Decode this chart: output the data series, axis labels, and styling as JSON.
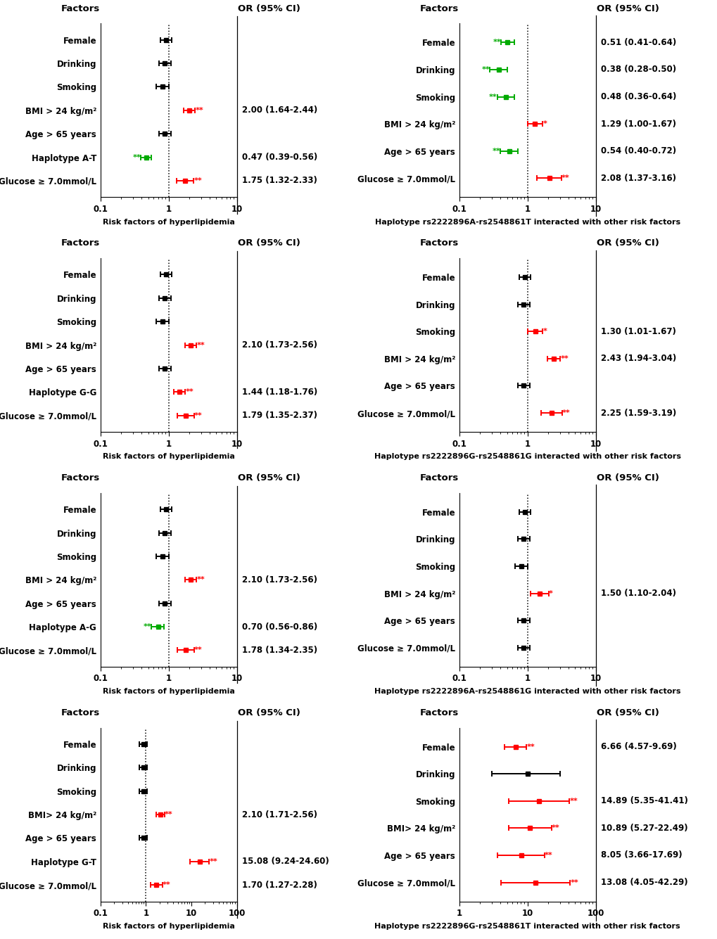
{
  "panels": [
    {
      "row": 0,
      "col": 0,
      "xlabel": "Risk factors of hyperlipidemia",
      "xlim": [
        0.1,
        10
      ],
      "xtick_vals": [
        0.1,
        1,
        10
      ],
      "xtick_labels": [
        "0.1",
        "1",
        "10"
      ],
      "factors": [
        "Female",
        "Drinking",
        "Smoking",
        "BMI > 24 kg/m²",
        "Age > 65 years",
        "Haplotype A-T",
        "Glucose ≥ 7.0mmol/L"
      ],
      "or": [
        0.92,
        0.88,
        0.82,
        2.0,
        0.88,
        0.47,
        1.75
      ],
      "ci_low": [
        0.75,
        0.72,
        0.66,
        1.64,
        0.72,
        0.39,
        1.32
      ],
      "ci_high": [
        1.12,
        1.07,
        1.01,
        2.44,
        1.07,
        0.56,
        2.33
      ],
      "colors": [
        "#000000",
        "#000000",
        "#000000",
        "#ff0000",
        "#000000",
        "#00aa00",
        "#ff0000"
      ],
      "sig_left": [
        "",
        "",
        "",
        "",
        "",
        "**",
        ""
      ],
      "sig_right": [
        "",
        "",
        "",
        "**",
        "",
        "",
        "**"
      ],
      "or_labels": [
        "",
        "",
        "",
        "2.00 (1.64-2.44)",
        "",
        "0.47 (0.39-0.56)",
        "1.75 (1.32-2.33)"
      ]
    },
    {
      "row": 0,
      "col": 1,
      "xlabel": "Haplotype rs2222896A-rs2548861T interacted with other risk factors",
      "xlim": [
        0.1,
        10
      ],
      "xtick_vals": [
        0.1,
        1,
        10
      ],
      "xtick_labels": [
        "0.1",
        "1",
        "10"
      ],
      "factors": [
        "Female",
        "Drinking",
        "Smoking",
        "BMI > 24 kg/m²",
        "Age > 65 years",
        "Glucose ≥ 7.0mmol/L"
      ],
      "or": [
        0.51,
        0.38,
        0.48,
        1.29,
        0.54,
        2.08
      ],
      "ci_low": [
        0.41,
        0.28,
        0.36,
        1.0,
        0.4,
        1.37
      ],
      "ci_high": [
        0.64,
        0.5,
        0.64,
        1.67,
        0.72,
        3.16
      ],
      "colors": [
        "#00aa00",
        "#00aa00",
        "#00aa00",
        "#ff0000",
        "#00aa00",
        "#ff0000"
      ],
      "sig_left": [
        "**",
        "**",
        "**",
        "",
        "**",
        ""
      ],
      "sig_right": [
        "",
        "",
        "",
        "*",
        "",
        "**"
      ],
      "or_labels": [
        "0.51 (0.41-0.64)",
        "0.38 (0.28-0.50)",
        "0.48 (0.36-0.64)",
        "1.29 (1.00-1.67)",
        "0.54 (0.40-0.72)",
        "2.08 (1.37-3.16)"
      ]
    },
    {
      "row": 1,
      "col": 0,
      "xlabel": "Risk factors of hyperlipidemia",
      "xlim": [
        0.1,
        10
      ],
      "xtick_vals": [
        0.1,
        1,
        10
      ],
      "xtick_labels": [
        "0.1",
        "1",
        "10"
      ],
      "factors": [
        "Female",
        "Drinking",
        "Smoking",
        "BMI > 24 kg/m²",
        "Age > 65 years",
        "Haplotype G-G",
        "Glucose ≥ 7.0mmol/L"
      ],
      "or": [
        0.92,
        0.88,
        0.82,
        2.1,
        0.88,
        1.44,
        1.79
      ],
      "ci_low": [
        0.75,
        0.72,
        0.66,
        1.73,
        0.72,
        1.18,
        1.35
      ],
      "ci_high": [
        1.12,
        1.07,
        1.01,
        2.56,
        1.07,
        1.76,
        2.37
      ],
      "colors": [
        "#000000",
        "#000000",
        "#000000",
        "#ff0000",
        "#000000",
        "#ff0000",
        "#ff0000"
      ],
      "sig_left": [
        "",
        "",
        "",
        "",
        "",
        "",
        ""
      ],
      "sig_right": [
        "",
        "",
        "",
        "**",
        "",
        "**",
        "**"
      ],
      "or_labels": [
        "",
        "",
        "",
        "2.10 (1.73-2.56)",
        "",
        "1.44 (1.18-1.76)",
        "1.79 (1.35-2.37)"
      ]
    },
    {
      "row": 1,
      "col": 1,
      "xlabel": "Haplotype rs2222896G-rs2548861G interacted with other risk factors",
      "xlim": [
        0.1,
        10
      ],
      "xtick_vals": [
        0.1,
        1,
        10
      ],
      "xtick_labels": [
        "0.1",
        "1",
        "10"
      ],
      "factors": [
        "Female",
        "Drinking",
        "Smoking",
        "BMI > 24 kg/m²",
        "Age > 65 years",
        "Glucose ≥ 7.0mmol/L"
      ],
      "or": [
        0.92,
        0.88,
        1.3,
        2.43,
        0.88,
        2.25
      ],
      "ci_low": [
        0.75,
        0.72,
        1.01,
        1.94,
        0.72,
        1.59
      ],
      "ci_high": [
        1.12,
        1.07,
        1.67,
        3.04,
        1.07,
        3.19
      ],
      "colors": [
        "#000000",
        "#000000",
        "#ff0000",
        "#ff0000",
        "#000000",
        "#ff0000"
      ],
      "sig_left": [
        "",
        "",
        "",
        "",
        "",
        ""
      ],
      "sig_right": [
        "",
        "",
        "*",
        "**",
        "",
        "**"
      ],
      "or_labels": [
        "",
        "",
        "1.30 (1.01-1.67)",
        "2.43 (1.94-3.04)",
        "",
        "2.25 (1.59-3.19)"
      ]
    },
    {
      "row": 2,
      "col": 0,
      "xlabel": "Risk factors of hyperlipidemia",
      "xlim": [
        0.1,
        10
      ],
      "xtick_vals": [
        0.1,
        1,
        10
      ],
      "xtick_labels": [
        "0.1",
        "1",
        "10"
      ],
      "factors": [
        "Female",
        "Drinking",
        "Smoking",
        "BMI > 24 kg/m²",
        "Age > 65 years",
        "Haplotype A-G",
        "Glucose ≥ 7.0mmol/L"
      ],
      "or": [
        0.92,
        0.88,
        0.82,
        2.1,
        0.88,
        0.7,
        1.78
      ],
      "ci_low": [
        0.75,
        0.72,
        0.66,
        1.73,
        0.72,
        0.56,
        1.34
      ],
      "ci_high": [
        1.12,
        1.07,
        1.01,
        2.56,
        1.07,
        0.86,
        2.35
      ],
      "colors": [
        "#000000",
        "#000000",
        "#000000",
        "#ff0000",
        "#000000",
        "#00aa00",
        "#ff0000"
      ],
      "sig_left": [
        "",
        "",
        "",
        "",
        "",
        "**",
        ""
      ],
      "sig_right": [
        "",
        "",
        "",
        "**",
        "",
        "",
        "**"
      ],
      "or_labels": [
        "",
        "",
        "",
        "2.10 (1.73-2.56)",
        "",
        "0.70 (0.56-0.86)",
        "1.78 (1.34-2.35)"
      ]
    },
    {
      "row": 2,
      "col": 1,
      "xlabel": "Haplotype rs2222896A-rs2548861G interacted with other risk factors",
      "xlim": [
        0.1,
        10
      ],
      "xtick_vals": [
        0.1,
        1,
        10
      ],
      "xtick_labels": [
        "0.1",
        "1",
        "10"
      ],
      "factors": [
        "Female",
        "Drinking",
        "Smoking",
        "BMI > 24 kg/m²",
        "Age > 65 years",
        "Glucose ≥ 7.0mmol/L"
      ],
      "or": [
        0.92,
        0.88,
        0.82,
        1.5,
        0.88,
        0.88
      ],
      "ci_low": [
        0.75,
        0.72,
        0.66,
        1.1,
        0.72,
        0.72
      ],
      "ci_high": [
        1.12,
        1.07,
        1.01,
        2.04,
        1.07,
        1.07
      ],
      "colors": [
        "#000000",
        "#000000",
        "#000000",
        "#ff0000",
        "#000000",
        "#000000"
      ],
      "sig_left": [
        "",
        "",
        "",
        "",
        "",
        ""
      ],
      "sig_right": [
        "",
        "",
        "",
        "*",
        "",
        ""
      ],
      "or_labels": [
        "",
        "",
        "",
        "1.50 (1.10-2.04)",
        "",
        ""
      ]
    },
    {
      "row": 3,
      "col": 0,
      "xlabel": "Risk factors of hyperlipidemia",
      "xlim": [
        0.1,
        100
      ],
      "xtick_vals": [
        0.1,
        1,
        10,
        100
      ],
      "xtick_labels": [
        "0.1",
        "1",
        "10",
        "100"
      ],
      "factors": [
        "Female",
        "Drinking",
        "Smoking",
        "BMI> 24 kg/m²",
        "Age > 65 years",
        "Haplotype G-T",
        "Glucose ≥ 7.0mmol/L"
      ],
      "or": [
        0.88,
        0.88,
        0.88,
        2.1,
        0.88,
        15.08,
        1.7
      ],
      "ci_low": [
        0.72,
        0.72,
        0.72,
        1.71,
        0.72,
        9.24,
        1.27
      ],
      "ci_high": [
        1.07,
        1.07,
        1.07,
        2.56,
        1.07,
        24.6,
        2.28
      ],
      "colors": [
        "#000000",
        "#000000",
        "#000000",
        "#ff0000",
        "#000000",
        "#ff0000",
        "#ff0000"
      ],
      "sig_left": [
        "",
        "",
        "",
        "",
        "",
        "",
        ""
      ],
      "sig_right": [
        "",
        "",
        "",
        "**",
        "",
        "**",
        "**"
      ],
      "or_labels": [
        "",
        "",
        "",
        "2.10 (1.71-2.56)",
        "",
        "15.08 (9.24-24.60)",
        "1.70 (1.27-2.28)"
      ]
    },
    {
      "row": 3,
      "col": 1,
      "xlabel": "Haplotype rs2222896G-rs2548861T interacted with other risk factors",
      "xlim": [
        1,
        100
      ],
      "xtick_vals": [
        1,
        10,
        100
      ],
      "xtick_labels": [
        "1",
        "10",
        "100"
      ],
      "factors": [
        "Female",
        "Drinking",
        "Smoking",
        "BMI> 24 kg/m²",
        "Age > 65 years",
        "Glucose ≥ 7.0mmol/L"
      ],
      "or": [
        6.66,
        10.0,
        14.89,
        10.89,
        8.05,
        13.08
      ],
      "ci_low": [
        4.57,
        3.0,
        5.35,
        5.27,
        3.66,
        4.05
      ],
      "ci_high": [
        9.69,
        30.0,
        41.41,
        22.49,
        17.69,
        42.29
      ],
      "colors": [
        "#ff0000",
        "#000000",
        "#ff0000",
        "#ff0000",
        "#ff0000",
        "#ff0000"
      ],
      "sig_left": [
        "",
        "",
        "",
        "",
        "",
        ""
      ],
      "sig_right": [
        "**",
        "",
        "**",
        "**",
        "**",
        "**"
      ],
      "or_labels": [
        "6.66 (4.57-9.69)",
        "",
        "14.89 (5.35-41.41)",
        "10.89 (5.27-22.49)",
        "8.05 (3.66-17.69)",
        "13.08 (4.05-42.29)"
      ]
    }
  ]
}
